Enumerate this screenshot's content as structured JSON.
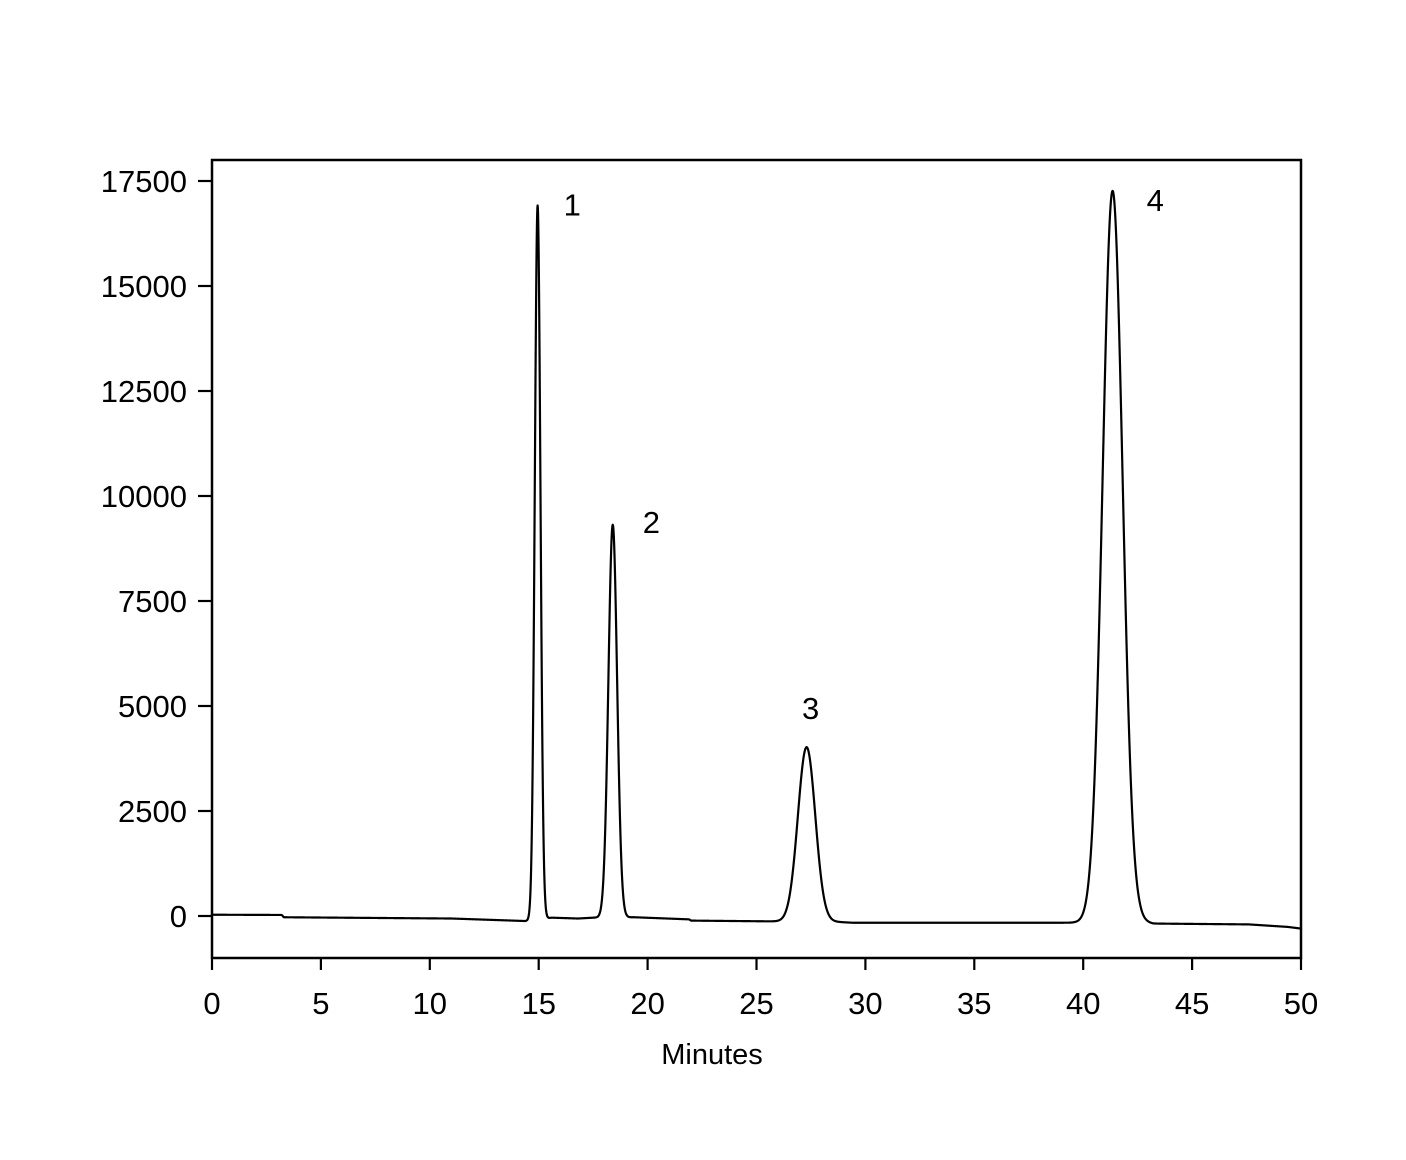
{
  "chart_data": {
    "type": "line",
    "title": "",
    "xlabel": "Minutes",
    "ylabel": "",
    "xlim": [
      0,
      50
    ],
    "ylim": [
      -1000,
      18000
    ],
    "x_ticks": [
      "0",
      "5",
      "10",
      "15",
      "20",
      "25",
      "30",
      "35",
      "40",
      "45",
      "50"
    ],
    "y_ticks": [
      "0",
      "2500",
      "5000",
      "7500",
      "10000",
      "12500",
      "15000",
      "17500"
    ],
    "grid": false,
    "legend": "none",
    "line_color": "#000000",
    "baseline": [
      [
        0,
        30
      ],
      [
        3.2,
        25
      ],
      [
        3.3,
        -30
      ],
      [
        11,
        -60
      ],
      [
        14.4,
        -120
      ],
      [
        15.6,
        -40
      ],
      [
        16.8,
        -60
      ],
      [
        17.5,
        -40
      ],
      [
        19.4,
        -30
      ],
      [
        21.9,
        -80
      ],
      [
        22,
        -110
      ],
      [
        26.2,
        -130
      ],
      [
        28.3,
        -130
      ],
      [
        29.4,
        -160
      ],
      [
        39.4,
        -160
      ],
      [
        42.6,
        -120
      ],
      [
        43.2,
        -180
      ],
      [
        47.6,
        -200
      ],
      [
        49.4,
        -260
      ],
      [
        50,
        -300
      ]
    ],
    "peaks": [
      {
        "label": "1",
        "retention_time": 14.95,
        "height": 17000,
        "width_sigma": 0.13
      },
      {
        "label": "2",
        "retention_time": 18.4,
        "height": 9350,
        "width_sigma": 0.2
      },
      {
        "label": "3",
        "retention_time": 27.3,
        "height": 4150,
        "width_sigma": 0.4
      },
      {
        "label": "4",
        "retention_time": 41.35,
        "height": 17400,
        "width_sigma": 0.46
      }
    ]
  }
}
